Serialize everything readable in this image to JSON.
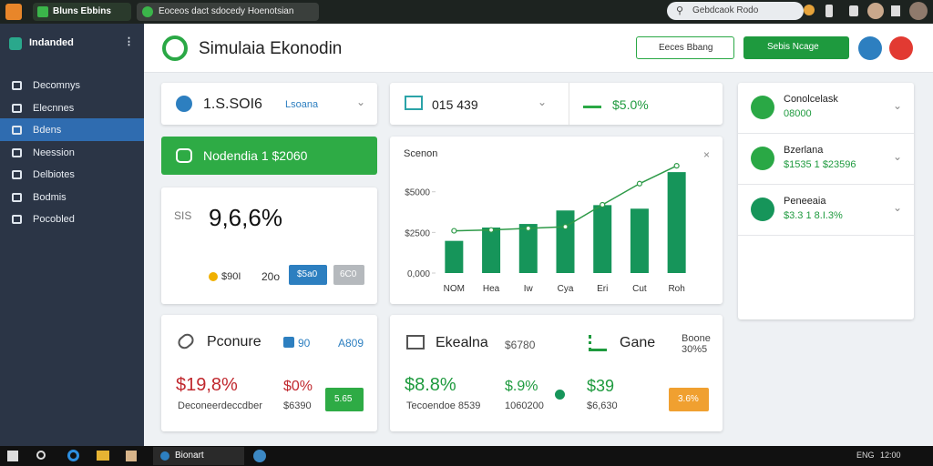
{
  "browser": {
    "tabs": [
      "Bluns Ebbins",
      "Eoceos dact sdocedy Hoenotsian"
    ],
    "search": "Gebdcaok Rodo"
  },
  "sidebar": {
    "title": "Indanded",
    "items": [
      "Decomnys",
      "Elecnnes",
      "Bdens",
      "Neession",
      "Delbiotes",
      "Bodmis",
      "Pocobled"
    ]
  },
  "header": {
    "title": "Simulaia Ekonodin",
    "buttons": [
      "Eeces Bbang",
      "Sebis Ncage"
    ]
  },
  "stats": [
    {
      "value": "1.S.SOI6",
      "link": "Lsoana"
    },
    {
      "value": "015 439"
    },
    {
      "value": "$5.0%"
    }
  ],
  "banner": "Nodendia 1 $2060",
  "big_card": {
    "icon_label": "SIS",
    "value": "9,6,6%",
    "legend": "$90I",
    "sub": "20o",
    "buttons": [
      "$5a0",
      "6C0"
    ]
  },
  "panel_chart": {
    "title": "Scenon",
    "categories": [
      "NOM",
      "Hea",
      "Iw",
      "Cya",
      "Eri",
      "Cut",
      "Roh"
    ],
    "values": [
      1980,
      2800,
      3020,
      3850,
      4180,
      3960,
      6210
    ],
    "color": "#16955a",
    "line": {
      "values": [
        2600,
        2650,
        2750,
        2850,
        4200,
        5500,
        6600
      ],
      "color": "#2e9a48"
    },
    "ylim": [
      0,
      7000
    ],
    "yticks": [
      {
        "value": 0,
        "label": "0,000"
      },
      {
        "value": 2500,
        "label": "$2500"
      },
      {
        "value": 5000,
        "label": "$5000"
      }
    ]
  },
  "side_list": [
    {
      "title": "Conolcelask",
      "value": "08000"
    },
    {
      "title": "Bzerlana",
      "value": "$1535 1 $23596"
    },
    {
      "title": "Peneeaia",
      "value": "$3.3 1 8.I.3%"
    }
  ],
  "bottom": [
    {
      "title": "Pconure",
      "badge": "90",
      "right": "A809",
      "value": "$19,8%",
      "value2": "$0%",
      "button": "5.65",
      "label": "Deconeerdeccdber",
      "label2": "$6390"
    },
    {
      "title": "Ekealna",
      "right": "$6780",
      "value": "$8.8%",
      "value2": "$.9%",
      "label": "Tecoendoe 8539",
      "label2": "1060200"
    },
    {
      "title": "Gane",
      "right": "Boone 30%5",
      "value": "$39",
      "label": "$6,630",
      "button": "3.6%"
    }
  ],
  "taskbar": {
    "app": "Bionart",
    "tray": "ENG",
    "time": "12:00"
  }
}
